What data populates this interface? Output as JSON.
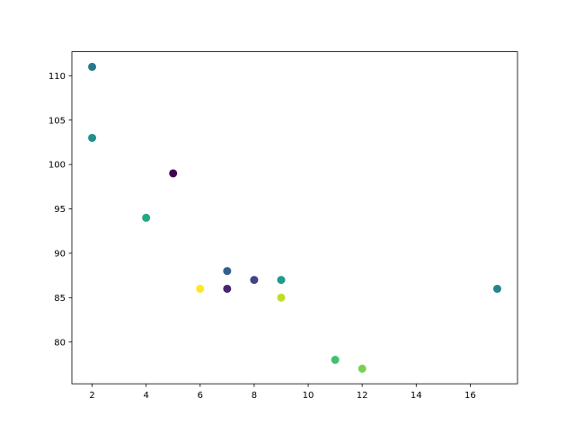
{
  "chart_data": {
    "type": "scatter",
    "title": "",
    "xlabel": "",
    "ylabel": "",
    "xlim": [
      1.25,
      17.75
    ],
    "ylim": [
      75.3,
      112.7
    ],
    "xticks": [
      2,
      4,
      6,
      8,
      10,
      12,
      14,
      16
    ],
    "yticks": [
      80,
      85,
      90,
      95,
      100,
      105,
      110
    ],
    "grid": false,
    "colormap": "viridis",
    "x": [
      5,
      7,
      8,
      7,
      2,
      17,
      2,
      9,
      4,
      11,
      12,
      9,
      6
    ],
    "y": [
      99,
      86,
      87,
      88,
      111,
      86,
      103,
      87,
      94,
      78,
      77,
      85,
      86
    ],
    "c": [
      0,
      10,
      20,
      30,
      40,
      45,
      50,
      55,
      60,
      70,
      80,
      90,
      100
    ],
    "point_colors": [
      "#440154",
      "#482475",
      "#414487",
      "#355f8d",
      "#2a788e",
      "#25848e",
      "#21918c",
      "#1e9c89",
      "#22a884",
      "#44bf70",
      "#7ad151",
      "#bddf26",
      "#fde725"
    ]
  }
}
